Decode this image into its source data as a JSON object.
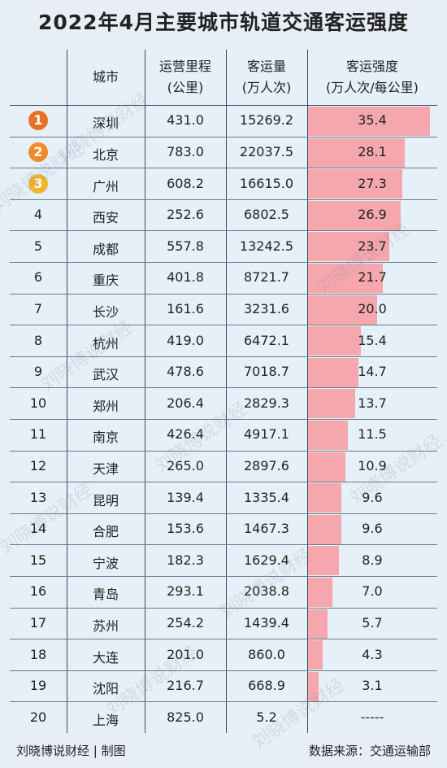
{
  "title": "2022年4月主要城市轨道交通客运强度",
  "headers": {
    "city": "城市",
    "length": [
      "运营里程",
      "(公里)"
    ],
    "volume": [
      "客运量",
      "(万人次)"
    ],
    "intensity": [
      "客运强度",
      "(万人次/每公里)"
    ]
  },
  "rows": [
    {
      "rank": "1",
      "city": "深圳",
      "length": "431.0",
      "volume": "15269.2",
      "intensity": "35.4"
    },
    {
      "rank": "2",
      "city": "北京",
      "length": "783.0",
      "volume": "22037.5",
      "intensity": "28.1"
    },
    {
      "rank": "3",
      "city": "广州",
      "length": "608.2",
      "volume": "16615.0",
      "intensity": "27.3"
    },
    {
      "rank": "4",
      "city": "西安",
      "length": "252.6",
      "volume": "6802.5",
      "intensity": "26.9"
    },
    {
      "rank": "5",
      "city": "成都",
      "length": "557.8",
      "volume": "13242.5",
      "intensity": "23.7"
    },
    {
      "rank": "6",
      "city": "重庆",
      "length": "401.8",
      "volume": "8721.7",
      "intensity": "21.7"
    },
    {
      "rank": "7",
      "city": "长沙",
      "length": "161.6",
      "volume": "3231.6",
      "intensity": "20.0"
    },
    {
      "rank": "8",
      "city": "杭州",
      "length": "419.0",
      "volume": "6472.1",
      "intensity": "15.4"
    },
    {
      "rank": "9",
      "city": "武汉",
      "length": "478.6",
      "volume": "7018.7",
      "intensity": "14.7"
    },
    {
      "rank": "10",
      "city": "郑州",
      "length": "206.4",
      "volume": "2829.3",
      "intensity": "13.7"
    },
    {
      "rank": "11",
      "city": "南京",
      "length": "426.4",
      "volume": "4917.1",
      "intensity": "11.5"
    },
    {
      "rank": "12",
      "city": "天津",
      "length": "265.0",
      "volume": "2897.6",
      "intensity": "10.9"
    },
    {
      "rank": "13",
      "city": "昆明",
      "length": "139.4",
      "volume": "1335.4",
      "intensity": "9.6"
    },
    {
      "rank": "14",
      "city": "合肥",
      "length": "153.6",
      "volume": "1467.3",
      "intensity": "9.6"
    },
    {
      "rank": "15",
      "city": "宁波",
      "length": "182.3",
      "volume": "1629.4",
      "intensity": "8.9"
    },
    {
      "rank": "16",
      "city": "青岛",
      "length": "293.1",
      "volume": "2038.8",
      "intensity": "7.0"
    },
    {
      "rank": "17",
      "city": "苏州",
      "length": "254.2",
      "volume": "1439.4",
      "intensity": "5.7"
    },
    {
      "rank": "18",
      "city": "大连",
      "length": "201.0",
      "volume": "860.0",
      "intensity": "4.3"
    },
    {
      "rank": "19",
      "city": "沈阳",
      "length": "216.7",
      "volume": "668.9",
      "intensity": "3.1"
    },
    {
      "rank": "20",
      "city": "上海",
      "length": "825.0",
      "volume": "5.2",
      "intensity": "-----"
    }
  ],
  "chart_data": {
    "type": "bar",
    "categories": [
      "深圳",
      "北京",
      "广州",
      "西安",
      "成都",
      "重庆",
      "长沙",
      "杭州",
      "武汉",
      "郑州",
      "南京",
      "天津",
      "昆明",
      "合肥",
      "宁波",
      "青岛",
      "苏州",
      "大连",
      "沈阳",
      "上海"
    ],
    "values": [
      35.4,
      28.1,
      27.3,
      26.9,
      23.7,
      21.7,
      20.0,
      15.4,
      14.7,
      13.7,
      11.5,
      10.9,
      9.6,
      9.6,
      8.9,
      7.0,
      5.7,
      4.3,
      3.1,
      null
    ],
    "max": 35.4,
    "bar_color": "#f5a7ad"
  },
  "badge_colors": [
    "#e8712a",
    "#f08a2c",
    "#f3b431"
  ],
  "footer": {
    "left": "刘晓博说财经 | 制图",
    "right": "数据来源：交通运输部"
  },
  "watermark": "刘晓博说财经"
}
